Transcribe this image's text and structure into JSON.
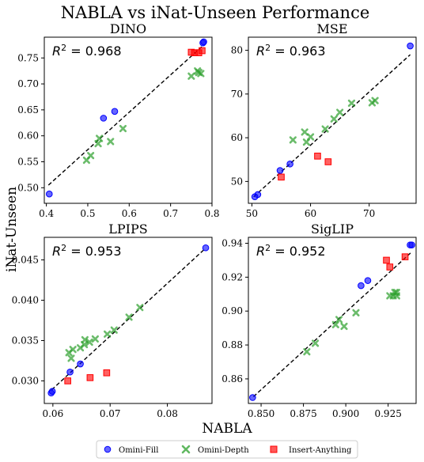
{
  "figure": {
    "title": "NABLA vs iNat-Unseen Performance",
    "xlabel": "NABLA",
    "ylabel": "iNat-Unseen"
  },
  "legend": {
    "placement": "bottom-center",
    "entries": [
      {
        "label": "Omini-Fill",
        "color": "#0000ff",
        "marker": "circle"
      },
      {
        "label": "Omini-Depth",
        "color": "#2ca02c",
        "marker": "x"
      },
      {
        "label": "Insert-Anything",
        "color": "#ff0000",
        "marker": "square"
      }
    ]
  },
  "chart_data": [
    {
      "type": "scatter",
      "title": "DINO",
      "annotation": "R^2 = 0.968",
      "xlim": [
        0.395,
        0.8
      ],
      "ylim": [
        0.47,
        0.79
      ],
      "xticks": [
        0.4,
        0.5,
        0.6,
        0.7,
        0.8
      ],
      "xtick_labels": [
        "0.4",
        "0.5",
        "0.6",
        "0.7",
        "0.8"
      ],
      "yticks": [
        0.5,
        0.55,
        0.6,
        0.65,
        0.7,
        0.75
      ],
      "ytick_labels": [
        "0.50",
        "0.55",
        "0.60",
        "0.65",
        "0.70",
        "0.75"
      ],
      "fit": {
        "x": [
          0.405,
          0.78
        ],
        "y": [
          0.505,
          0.775
        ]
      },
      "series": [
        {
          "name": "Omini-Fill",
          "x": [
            0.407,
            0.538,
            0.565,
            0.778,
            0.78
          ],
          "y": [
            0.488,
            0.634,
            0.647,
            0.779,
            0.781
          ]
        },
        {
          "name": "Omini-Depth",
          "x": [
            0.497,
            0.507,
            0.525,
            0.528,
            0.555,
            0.585,
            0.75,
            0.765,
            0.768,
            0.773
          ],
          "y": [
            0.553,
            0.562,
            0.585,
            0.595,
            0.589,
            0.614,
            0.715,
            0.725,
            0.722,
            0.72
          ]
        },
        {
          "name": "Insert-Anything",
          "x": [
            0.75,
            0.758,
            0.768,
            0.776
          ],
          "y": [
            0.761,
            0.76,
            0.76,
            0.764
          ]
        }
      ]
    },
    {
      "type": "scatter",
      "title": "MSE",
      "annotation": "R^2 = 0.963",
      "xlim": [
        49.4,
        78.0
      ],
      "ylim": [
        45.0,
        83.0
      ],
      "xticks": [
        50,
        60,
        70
      ],
      "xtick_labels": [
        "50",
        "60",
        "70"
      ],
      "yticks": [
        50,
        60,
        70,
        80
      ],
      "ytick_labels": [
        "50",
        "60",
        "70",
        "80"
      ],
      "fit": {
        "x": [
          50.3,
          77.0
        ],
        "y": [
          46.5,
          79.0
        ]
      },
      "series": [
        {
          "name": "Omini-Fill",
          "x": [
            50.5,
            51.0,
            54.8,
            56.5,
            77.0
          ],
          "y": [
            46.5,
            47.0,
            52.5,
            54.0,
            81.0
          ]
        },
        {
          "name": "Omini-Depth",
          "x": [
            57.0,
            59.0,
            59.3,
            60.0,
            62.5,
            64.0,
            65.0,
            67.0,
            70.5,
            71.0
          ],
          "y": [
            59.5,
            61.3,
            59.0,
            60.2,
            62.0,
            64.3,
            65.8,
            67.9,
            68.0,
            68.5
          ]
        },
        {
          "name": "Insert-Anything",
          "x": [
            55.0,
            61.2,
            63.0
          ],
          "y": [
            51.0,
            55.8,
            54.5
          ]
        }
      ]
    },
    {
      "type": "scatter",
      "title": "LPIPS",
      "annotation": "R^2 = 0.953",
      "xlim": [
        0.0585,
        0.0878
      ],
      "ylim": [
        0.0272,
        0.0478
      ],
      "xticks": [
        0.06,
        0.07,
        0.08
      ],
      "xtick_labels": [
        "0.06",
        "0.07",
        "0.08"
      ],
      "yticks": [
        0.03,
        0.035,
        0.04,
        0.045
      ],
      "ytick_labels": [
        "0.030",
        "0.035",
        "0.040",
        "0.045"
      ],
      "fit": {
        "x": [
          0.0598,
          0.0866
        ],
        "y": [
          0.0289,
          0.0464
        ]
      },
      "series": [
        {
          "name": "Omini-Fill",
          "x": [
            0.0597,
            0.0599,
            0.063,
            0.0648,
            0.0867
          ],
          "y": [
            0.0285,
            0.0287,
            0.0311,
            0.0321,
            0.0465
          ]
        },
        {
          "name": "Omini-Depth",
          "x": [
            0.0628,
            0.0632,
            0.0635,
            0.0648,
            0.0655,
            0.0656,
            0.0664,
            0.0674,
            0.0695,
            0.0707,
            0.0733,
            0.0752
          ],
          "y": [
            0.0335,
            0.0328,
            0.0339,
            0.0341,
            0.0345,
            0.0351,
            0.0348,
            0.0352,
            0.0358,
            0.0363,
            0.0379,
            0.0391
          ]
        },
        {
          "name": "Insert-Anything",
          "x": [
            0.0626,
            0.0665,
            0.0694
          ],
          "y": [
            0.03,
            0.0304,
            0.031
          ]
        }
      ]
    },
    {
      "type": "scatter",
      "title": "SigLIP",
      "annotation": "R^2 = 0.952",
      "xlim": [
        0.8425,
        0.9415
      ],
      "ylim": [
        0.8455,
        0.9435
      ],
      "xticks": [
        0.85,
        0.875,
        0.9,
        0.925
      ],
      "xtick_labels": [
        "0.850",
        "0.875",
        "0.900",
        "0.925"
      ],
      "yticks": [
        0.86,
        0.88,
        0.9,
        0.92,
        0.94
      ],
      "ytick_labels": [
        "0.86",
        "0.88",
        "0.90",
        "0.92",
        "0.94"
      ],
      "fit": {
        "x": [
          0.8455,
          0.9385
        ],
        "y": [
          0.8495,
          0.9345
        ]
      },
      "series": [
        {
          "name": "Omini-Fill",
          "x": [
            0.845,
            0.909,
            0.913,
            0.938,
            0.939
          ],
          "y": [
            0.849,
            0.915,
            0.918,
            0.939,
            0.939
          ]
        },
        {
          "name": "Omini-Depth",
          "x": [
            0.877,
            0.882,
            0.894,
            0.896,
            0.899,
            0.906,
            0.926,
            0.928,
            0.929,
            0.93,
            0.93
          ],
          "y": [
            0.876,
            0.881,
            0.892,
            0.895,
            0.891,
            0.899,
            0.909,
            0.909,
            0.911,
            0.911,
            0.909
          ]
        },
        {
          "name": "Insert-Anything",
          "x": [
            0.924,
            0.926,
            0.935
          ],
          "y": [
            0.93,
            0.926,
            0.932
          ]
        }
      ]
    }
  ]
}
